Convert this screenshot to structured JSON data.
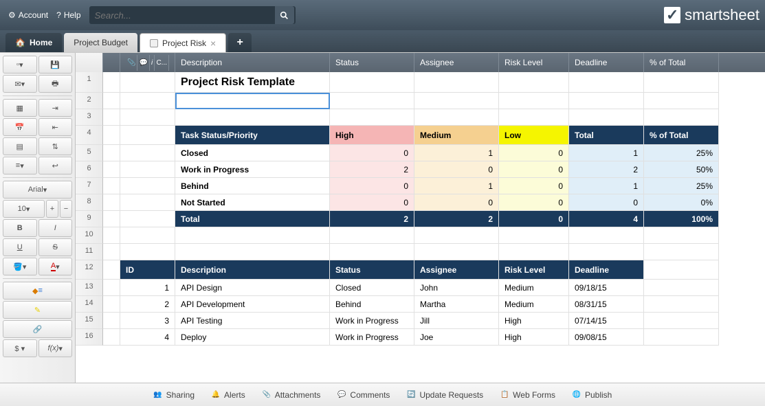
{
  "topbar": {
    "account": "Account",
    "help": "Help",
    "search_placeholder": "Search...",
    "logo": "smartsheet"
  },
  "tabs": {
    "home": "Home",
    "items": [
      {
        "label": "Project Budget",
        "active": false
      },
      {
        "label": "Project Risk",
        "active": true
      }
    ]
  },
  "sidebar": {
    "font": "Arial",
    "fontsize": "10"
  },
  "columns": {
    "description": "Description",
    "status": "Status",
    "assignee": "Assignee",
    "risk_level": "Risk Level",
    "deadline": "Deadline",
    "pct_total": "% of Total",
    "icon_c": "C..."
  },
  "content": {
    "title": "Project Risk Template",
    "summary_header": {
      "col1": "Task Status/Priority",
      "high": "High",
      "medium": "Medium",
      "low": "Low",
      "total": "Total",
      "pct": "% of Total"
    },
    "summary_rows": [
      {
        "label": "Closed",
        "high": "0",
        "med": "1",
        "low": "0",
        "total": "1",
        "pct": "25%"
      },
      {
        "label": "Work in Progress",
        "high": "2",
        "med": "0",
        "low": "0",
        "total": "2",
        "pct": "50%"
      },
      {
        "label": "Behind",
        "high": "0",
        "med": "1",
        "low": "0",
        "total": "1",
        "pct": "25%"
      },
      {
        "label": "Not Started",
        "high": "0",
        "med": "0",
        "low": "0",
        "total": "0",
        "pct": "0%"
      }
    ],
    "summary_total": {
      "label": "Total",
      "high": "2",
      "med": "2",
      "low": "0",
      "total": "4",
      "pct": "100%"
    },
    "task_header": {
      "id": "ID",
      "desc": "Description",
      "status": "Status",
      "assignee": "Assignee",
      "risk": "Risk Level",
      "deadline": "Deadline"
    },
    "tasks": [
      {
        "id": "1",
        "desc": "API Design",
        "status": "Closed",
        "assignee": "John",
        "risk": "Medium",
        "deadline": "09/18/15"
      },
      {
        "id": "2",
        "desc": "API Development",
        "status": "Behind",
        "assignee": "Martha",
        "risk": "Medium",
        "deadline": "08/31/15"
      },
      {
        "id": "3",
        "desc": "API Testing",
        "status": "Work in Progress",
        "assignee": "Jill",
        "risk": "High",
        "deadline": "07/14/15"
      },
      {
        "id": "4",
        "desc": "Deploy",
        "status": "Work in Progress",
        "assignee": "Joe",
        "risk": "High",
        "deadline": "09/08/15"
      }
    ]
  },
  "bottombar": {
    "sharing": "Sharing",
    "alerts": "Alerts",
    "attachments": "Attachments",
    "comments": "Comments",
    "update": "Update Requests",
    "webforms": "Web Forms",
    "publish": "Publish"
  },
  "colors": {
    "dark_header": "#1a3a5c",
    "high": "#f5b5b5",
    "med": "#f5d090",
    "low": "#f5f500",
    "high_lt": "#fce5e5",
    "med_lt": "#fcf0d8",
    "low_lt": "#fcfcd8",
    "total_lt": "#e0eef8"
  }
}
